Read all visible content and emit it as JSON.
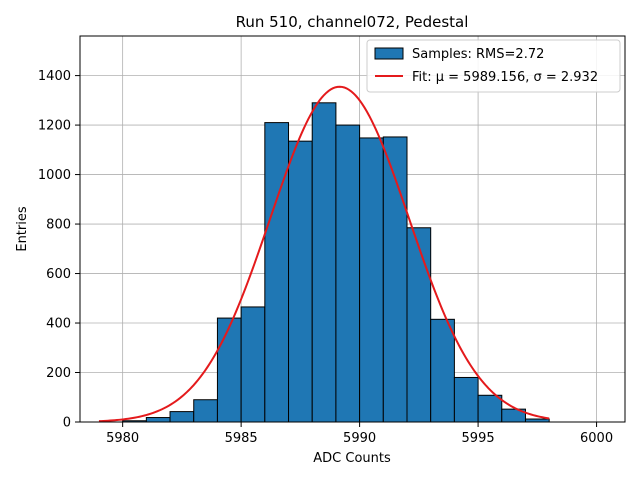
{
  "chart_data": {
    "type": "bar",
    "title": "Run 510, channel072, Pedestal",
    "xlabel": "ADC Counts",
    "ylabel": "Entries",
    "xlim": [
      5978.2,
      6001.2
    ],
    "ylim": [
      0,
      1560
    ],
    "xticks": [
      5980,
      5985,
      5990,
      5995,
      6000
    ],
    "yticks": [
      0,
      200,
      400,
      600,
      800,
      1000,
      1200,
      1400
    ],
    "grid": true,
    "bins": [
      {
        "x0": 5980,
        "x1": 5981,
        "count": 5
      },
      {
        "x0": 5981,
        "x1": 5982,
        "count": 18
      },
      {
        "x0": 5982,
        "x1": 5983,
        "count": 42
      },
      {
        "x0": 5983,
        "x1": 5984,
        "count": 90
      },
      {
        "x0": 5984,
        "x1": 5985,
        "count": 420
      },
      {
        "x0": 5985,
        "x1": 5986,
        "count": 465
      },
      {
        "x0": 5986,
        "x1": 5987,
        "count": 1210
      },
      {
        "x0": 5987,
        "x1": 5988,
        "count": 1135
      },
      {
        "x0": 5988,
        "x1": 5989,
        "count": 1290
      },
      {
        "x0": 5989,
        "x1": 5990,
        "count": 1200
      },
      {
        "x0": 5990,
        "x1": 5991,
        "count": 1148
      },
      {
        "x0": 5991,
        "x1": 5992,
        "count": 1152
      },
      {
        "x0": 5992,
        "x1": 5993,
        "count": 785
      },
      {
        "x0": 5993,
        "x1": 5994,
        "count": 415
      },
      {
        "x0": 5994,
        "x1": 5995,
        "count": 180
      },
      {
        "x0": 5995,
        "x1": 5996,
        "count": 108
      },
      {
        "x0": 5996,
        "x1": 5997,
        "count": 52
      },
      {
        "x0": 5997,
        "x1": 5998,
        "count": 12
      }
    ],
    "fit": {
      "mu": 5989.156,
      "sigma": 2.932,
      "amplitude": 1355,
      "x_range": [
        5979,
        5998
      ]
    },
    "legend": {
      "position": "top-right",
      "entries": [
        {
          "name": "Samples: RMS=2.72",
          "kind": "patch",
          "color": "#1f77b4"
        },
        {
          "name": "Fit: μ = 5989.156, σ = 2.932",
          "kind": "line",
          "color": "#e41a1c"
        }
      ]
    }
  }
}
